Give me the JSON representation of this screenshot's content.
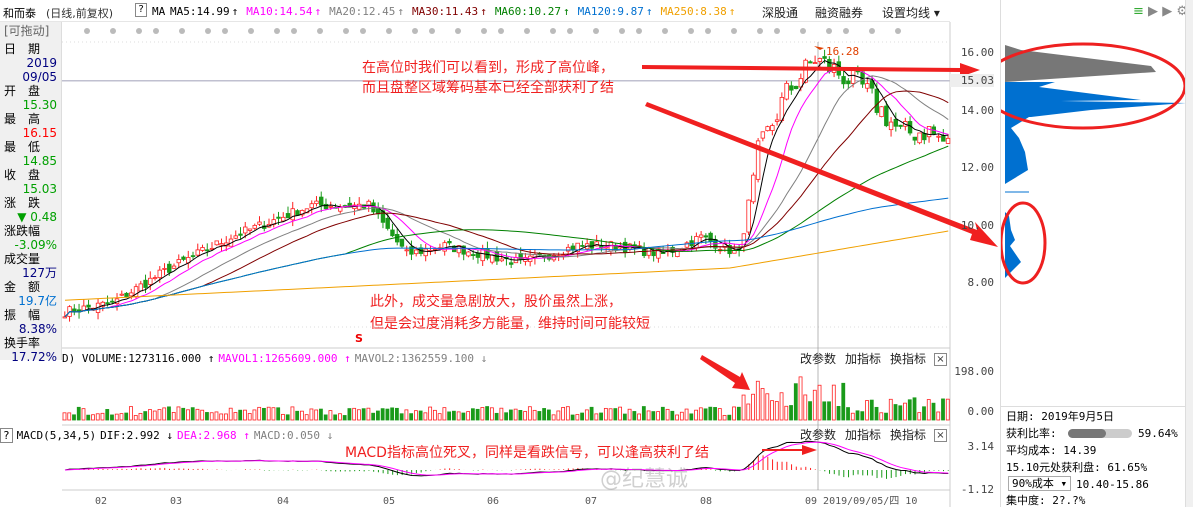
{
  "header": {
    "stock": "和而泰",
    "mode": "(日线,前复权)",
    "help": "?",
    "ma_label": "MA",
    "ma": [
      {
        "label": "MA5:14.99",
        "arrow": "↑",
        "color": "#000000"
      },
      {
        "label": "MA10:14.54",
        "arrow": "↑",
        "color": "#ff00ff"
      },
      {
        "label": "MA20:12.45",
        "arrow": "↑",
        "color": "#808080"
      },
      {
        "label": "MA30:11.43",
        "arrow": "↑",
        "color": "#800000"
      },
      {
        "label": "MA60:10.27",
        "arrow": "↑",
        "color": "#008000"
      },
      {
        "label": "MA120:9.87",
        "arrow": "↑",
        "color": "#0070d0"
      },
      {
        "label": "MA250:8.38",
        "arrow": "↑",
        "color": "#f0a000"
      }
    ],
    "links": [
      "深股通",
      "融资融券",
      "设置均线 ▾"
    ]
  },
  "draggable": "[可拖动]",
  "left_panel": [
    {
      "label": "日　期",
      "value": "2019",
      "value2": "09/05",
      "color": "#000080"
    },
    {
      "label": "开　盘",
      "value": "15.30",
      "color": "#00a000"
    },
    {
      "label": "最　高",
      "value": "16.15",
      "color": "#ff0000"
    },
    {
      "label": "最　低",
      "value": "14.85",
      "color": "#00a000"
    },
    {
      "label": "收　盘",
      "value": "15.03",
      "color": "#00a000"
    },
    {
      "label": "涨　跌",
      "value": "▼ 0.48",
      "color": "#00a000"
    },
    {
      "label": "涨跌幅",
      "value": "-3.09%",
      "color": "#00a000"
    },
    {
      "label": "成交量",
      "value": "127万",
      "color": "#000080"
    },
    {
      "label": "金　额",
      "value": "19.7亿",
      "color": "#0070d0"
    },
    {
      "label": "振　幅",
      "value": "8.38%",
      "color": "#000080"
    },
    {
      "label": "换手率",
      "value": "17.72%",
      "color": "#000080"
    }
  ],
  "price_axis": [
    "16.00",
    "15.03",
    "14.00",
    "12.00",
    "10.00",
    "8.00"
  ],
  "max_label": "16.28",
  "s_marker": "S",
  "volume": {
    "header": [
      {
        "t": "D) VOLUME:1273116.000 ↑",
        "c": "#000"
      },
      {
        "t": "MAVOL1:1265609.000 ↑",
        "c": "#ff00ff"
      },
      {
        "t": "MAVOL2:1362559.100 ↓",
        "c": "#808080"
      }
    ],
    "axis": [
      "198.00",
      "0.00"
    ]
  },
  "macd": {
    "help": "?",
    "header": [
      {
        "t": "MACD(5,34,5)",
        "c": "#000"
      },
      {
        "t": "DIF:2.992 ↓",
        "c": "#000"
      },
      {
        "t": "DEA:2.968 ↑",
        "c": "#ff00ff"
      },
      {
        "t": "MACD:0.050 ↓",
        "c": "#808080"
      }
    ],
    "axis": [
      "3.14",
      "-1.12"
    ]
  },
  "panel_buttons": [
    "改参数",
    "加指标",
    "换指标",
    "×"
  ],
  "annotations": [
    "在高位时我们可以看到，形成了高位峰，",
    "而且盘整区域筹码基本已经全部获利了结",
    "此外，成交量急剧放大，股价虽然上涨，",
    "但是会过度消耗多方能量，维持时间可能较短",
    "MACD指标高位死叉，同样是看跌信号，可以逢高获利了结"
  ],
  "watermark": "@纪慧诚",
  "x_axis": [
    "02",
    "03",
    "04",
    "05",
    "06",
    "07",
    "08",
    "09 2019/09/05/四 10"
  ],
  "chip": {
    "date": "日期: 2019年9月5日",
    "profit_label": "获利比率:",
    "profit_ratio": 59.64,
    "profit_text": "59.64%",
    "avg_cost": "平均成本: 14.39",
    "profit_at": "15.10元处获利盘: 61.65%",
    "cost_select": "90%成本",
    "cost_range": "10.40-15.86",
    "more": "集中度: 2?.?%"
  },
  "colors": {
    "up": "#ff2020",
    "down": "#1a9a1a",
    "chip_profit": "#777777",
    "chip_loss": "#0070d0",
    "annotation": "#f02020"
  },
  "chart_data": {
    "type": "candlestick",
    "ylim": [
      6.5,
      17
    ],
    "close_keypoints": [
      [
        0,
        7.0
      ],
      [
        10,
        7.3
      ],
      [
        22,
        8.5
      ],
      [
        35,
        9.6
      ],
      [
        52,
        10.7
      ],
      [
        64,
        10.7
      ],
      [
        72,
        9.0
      ],
      [
        80,
        9.3
      ],
      [
        96,
        8.7
      ],
      [
        108,
        9.3
      ],
      [
        116,
        9.3
      ],
      [
        126,
        9.0
      ],
      [
        134,
        9.6
      ],
      [
        142,
        9.0
      ],
      [
        146,
        12.5
      ],
      [
        152,
        14.6
      ],
      [
        158,
        15.8
      ],
      [
        162,
        15.4
      ],
      [
        168,
        14.8
      ],
      [
        172,
        14.0
      ],
      [
        176,
        13.2
      ],
      [
        182,
        13.3
      ],
      [
        186,
        12.8
      ]
    ]
  }
}
